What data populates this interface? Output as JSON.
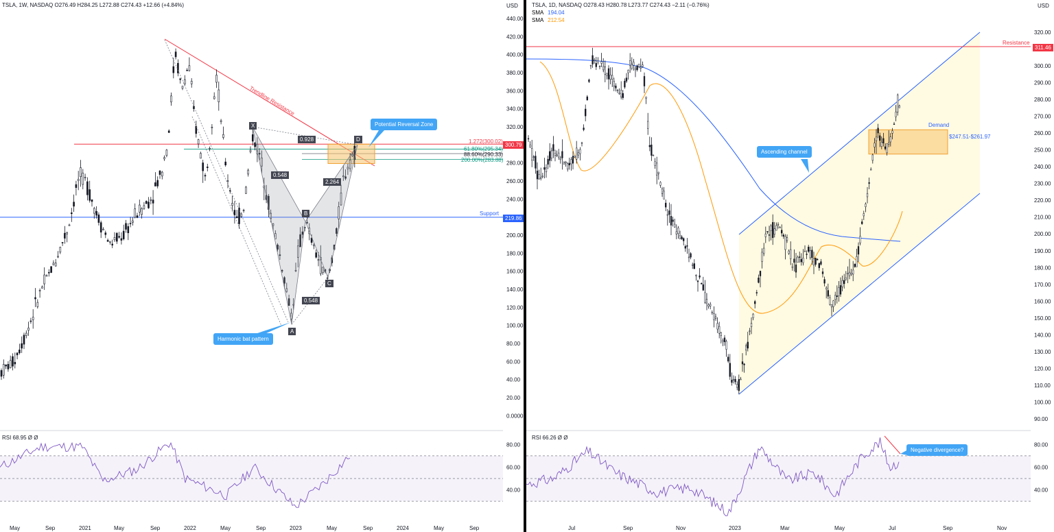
{
  "left": {
    "header": "TSLA, 1W, NASDAQ  O276.49  H284.25  L272.88  C274.43  +12.66 (+4.84%)",
    "currency": "USD",
    "rsi_header": "RSI  68.95  Ø  Ø",
    "price_tags": {
      "resistance": "300.79",
      "support": "219.86"
    },
    "support_label": "Support",
    "trendline_label": "Trendline Resistance",
    "fib_labels": [
      "1.272(300.02)",
      "61.80%(295.34)",
      "88.60%(290.33)",
      "200.00%(283.88)"
    ],
    "pattern_points": [
      "X",
      "A",
      "B",
      "C",
      "D"
    ],
    "ratio_labels": [
      "0.928",
      "0.548",
      "2.264",
      "0.548"
    ],
    "callouts": {
      "prz": "Potential Reversal Zone",
      "bat": "Harmonic bat pattern"
    },
    "colors": {
      "candle": "#131722",
      "resistance": "#f23645",
      "support": "#2962ff",
      "fib_green": "#089981",
      "zone": "#f7c26b",
      "rsi": "#7e57c2",
      "callout": "#42a5f5"
    }
  },
  "right": {
    "header": "TSLA, 1D, NASDAQ  O278.43  H280.78  L273.77  C274.43  −2.11 (−0.76%)",
    "sma1": {
      "label": "SMA",
      "value": "194.04",
      "color": "#2962ff"
    },
    "sma2": {
      "label": "SMA",
      "value": "212.54",
      "color": "#ff9800"
    },
    "currency": "USD",
    "rsi_header": "RSI  66.26  Ø  Ø",
    "resistance_label": "Resistance",
    "resistance_tag": "311.46",
    "demand_label": "Demand",
    "demand_range": "$247.51-$261.97",
    "callouts": {
      "channel": "Ascending channel",
      "divergence": "Negative divergence?"
    }
  },
  "chart_data": [
    {
      "type": "candlestick",
      "title": "TSLA, 1W, NASDAQ",
      "ylabel": "USD",
      "ylim": [
        0,
        440
      ],
      "yticks": [
        "440.00",
        "420.00",
        "400.00",
        "380.00",
        "360.00",
        "340.00",
        "320.00",
        "300.00",
        "280.00",
        "260.00",
        "240.00",
        "220.00",
        "200.00",
        "180.00",
        "160.00",
        "140.00",
        "120.00",
        "100.00",
        "80.00",
        "60.00",
        "40.00",
        "20.00",
        "0.0000"
      ],
      "xticks": [
        "May",
        "Sep",
        "2021",
        "May",
        "Sep",
        "2022",
        "May",
        "Sep",
        "2023",
        "May",
        "Sep",
        "2024",
        "May",
        "Sep"
      ],
      "horizontal_levels": [
        {
          "name": "Resistance",
          "value": 300.79
        },
        {
          "name": "Support",
          "value": 219.86
        }
      ],
      "harmonic_points": {
        "X": 320,
        "A": 101,
        "B": 215,
        "C": 153,
        "D": 300
      },
      "rsi": {
        "value": 68.95,
        "yticks": [
          "80.00",
          "60.00",
          "40.00"
        ],
        "levels": [
          70,
          50,
          30
        ]
      }
    },
    {
      "type": "candlestick",
      "title": "TSLA, 1D, NASDAQ",
      "ylabel": "USD",
      "ylim": [
        90,
        320
      ],
      "yticks": [
        "320.00",
        "310.00",
        "300.00",
        "290.00",
        "280.00",
        "270.00",
        "260.00",
        "250.00",
        "240.00",
        "230.00",
        "220.00",
        "210.00",
        "200.00",
        "190.00",
        "180.00",
        "170.00",
        "160.00",
        "150.00",
        "140.00",
        "130.00",
        "120.00",
        "110.00",
        "100.00",
        "90.00"
      ],
      "xticks": [
        "Jul",
        "Sep",
        "Nov",
        "2023",
        "Mar",
        "May",
        "Jul",
        "Sep",
        "Nov"
      ],
      "series": [
        {
          "name": "SMA",
          "value": 194.04
        },
        {
          "name": "SMA",
          "value": 212.54
        }
      ],
      "horizontal_levels": [
        {
          "name": "Resistance",
          "value": 311.46
        }
      ],
      "demand_zone": [
        247.51,
        261.97
      ],
      "rsi": {
        "value": 66.26,
        "yticks": [
          "80.00",
          "60.00",
          "40.00"
        ],
        "levels": [
          70,
          50,
          30
        ]
      }
    }
  ]
}
